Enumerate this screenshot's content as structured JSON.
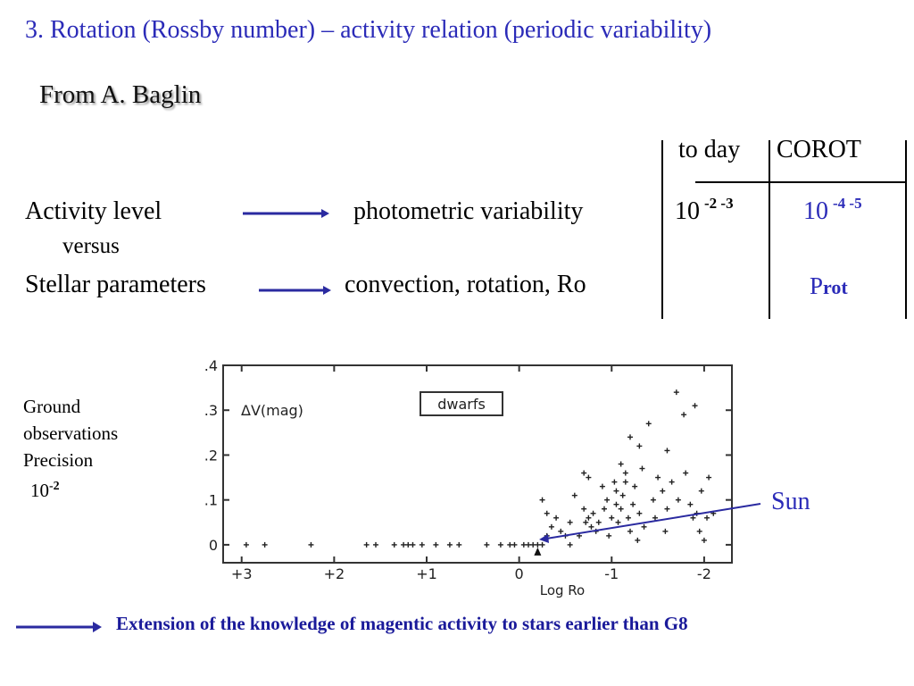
{
  "slide": {
    "title": "3. Rotation (Rossby number) – activity relation (periodic variability)",
    "subtitle": "From A. Baglin"
  },
  "table": {
    "col_today": "to day",
    "col_corot": "COROT",
    "row1_left": "Activity level",
    "row1_mid": "photometric variability",
    "row1_today_base": "10",
    "row1_today_exp": "-2 -3",
    "row1_corot_base": "10",
    "row1_corot_exp": "-4 -5",
    "versus": "versus",
    "row2_left": "Stellar parameters",
    "row2_mid": "convection, rotation, Ro",
    "row2_corot_p": "P",
    "row2_corot_sub": "rot"
  },
  "side_note": {
    "line1": "Ground",
    "line2": "observations",
    "line3": "Precision",
    "base": "10",
    "exp": "-2"
  },
  "sun_label": "Sun",
  "footer_text": "Extension of the knowledge of magentic activity to stars earlier than G8",
  "colors": {
    "accent_blue": "#2b2bb8",
    "footer_blue": "#1a1a9a",
    "arrow_blue": "#2a2aa0"
  },
  "chart_data": {
    "type": "scatter",
    "title": "",
    "legend": "dwarfs",
    "ylabel": "ΔV(mag)",
    "xlabel": "Log Ro",
    "xlim": [
      3.2,
      -2.3
    ],
    "ylim": [
      -0.04,
      0.4
    ],
    "x_ticks": [
      "+3",
      "+2",
      "+1",
      "0",
      "-1",
      "-2"
    ],
    "x_tick_values": [
      3,
      2,
      1,
      0,
      -1,
      -2
    ],
    "y_ticks": [
      ".4",
      ".3",
      ".2",
      ".1",
      "0"
    ],
    "y_tick_values": [
      0.4,
      0.3,
      0.2,
      0.1,
      0
    ],
    "grid": false,
    "points": [
      [
        2.95,
        0.0
      ],
      [
        2.75,
        0.0
      ],
      [
        2.25,
        0.0
      ],
      [
        1.65,
        0.0
      ],
      [
        1.55,
        0.0
      ],
      [
        1.35,
        0.0
      ],
      [
        1.25,
        0.0
      ],
      [
        1.2,
        0.0
      ],
      [
        1.15,
        0.0
      ],
      [
        1.05,
        0.0
      ],
      [
        0.9,
        0.0
      ],
      [
        0.75,
        0.0
      ],
      [
        0.65,
        0.0
      ],
      [
        0.35,
        0.0
      ],
      [
        0.2,
        0.0
      ],
      [
        0.1,
        0.0
      ],
      [
        0.05,
        0.0
      ],
      [
        -0.05,
        0.0
      ],
      [
        -0.1,
        0.0
      ],
      [
        -0.15,
        0.0
      ],
      [
        -0.2,
        0.0
      ],
      [
        -0.25,
        0.0
      ],
      [
        -0.25,
        0.1
      ],
      [
        -0.3,
        0.07
      ],
      [
        -0.3,
        0.02
      ],
      [
        -0.35,
        0.04
      ],
      [
        -0.4,
        0.06
      ],
      [
        -0.45,
        0.03
      ],
      [
        -0.5,
        0.02
      ],
      [
        -0.55,
        0.0
      ],
      [
        -0.6,
        0.11
      ],
      [
        -0.65,
        0.02
      ],
      [
        -0.7,
        0.08
      ],
      [
        -0.72,
        0.05
      ],
      [
        -0.75,
        0.06
      ],
      [
        -0.78,
        0.04
      ],
      [
        -0.8,
        0.07
      ],
      [
        -0.83,
        0.03
      ],
      [
        -0.86,
        0.05
      ],
      [
        -0.9,
        0.13
      ],
      [
        -0.92,
        0.08
      ],
      [
        -0.95,
        0.1
      ],
      [
        -0.97,
        0.02
      ],
      [
        -1.0,
        0.06
      ],
      [
        -1.03,
        0.14
      ],
      [
        -1.05,
        0.12
      ],
      [
        -1.07,
        0.05
      ],
      [
        -1.1,
        0.08
      ],
      [
        -1.12,
        0.11
      ],
      [
        -1.15,
        0.16
      ],
      [
        -1.18,
        0.06
      ],
      [
        -1.2,
        0.03
      ],
      [
        -1.23,
        0.09
      ],
      [
        -1.25,
        0.13
      ],
      [
        -1.28,
        0.01
      ],
      [
        -1.3,
        0.07
      ],
      [
        -1.33,
        0.17
      ],
      [
        -1.35,
        0.04
      ],
      [
        -1.4,
        0.27
      ],
      [
        -1.45,
        0.1
      ],
      [
        -1.47,
        0.06
      ],
      [
        -1.5,
        0.15
      ],
      [
        -1.55,
        0.12
      ],
      [
        -1.58,
        0.03
      ],
      [
        -1.6,
        0.08
      ],
      [
        -1.65,
        0.14
      ],
      [
        -1.7,
        0.34
      ],
      [
        -1.72,
        0.1
      ],
      [
        -1.78,
        0.29
      ],
      [
        -1.8,
        0.16
      ],
      [
        -1.85,
        0.09
      ],
      [
        -1.88,
        0.06
      ],
      [
        -1.9,
        0.31
      ],
      [
        -1.92,
        0.07
      ],
      [
        -1.95,
        0.03
      ],
      [
        -1.97,
        0.12
      ],
      [
        -2.0,
        0.01
      ],
      [
        -2.03,
        0.06
      ],
      [
        -2.05,
        0.15
      ],
      [
        -2.1,
        0.07
      ],
      [
        -0.7,
        0.16
      ],
      [
        -0.75,
        0.15
      ],
      [
        -1.2,
        0.24
      ],
      [
        -1.3,
        0.22
      ],
      [
        -1.1,
        0.18
      ],
      [
        -1.15,
        0.14
      ],
      [
        -1.6,
        0.21
      ],
      [
        -1.05,
        0.09
      ],
      [
        -0.55,
        0.05
      ]
    ],
    "sun_point": [
      -0.2,
      0.0
    ]
  }
}
